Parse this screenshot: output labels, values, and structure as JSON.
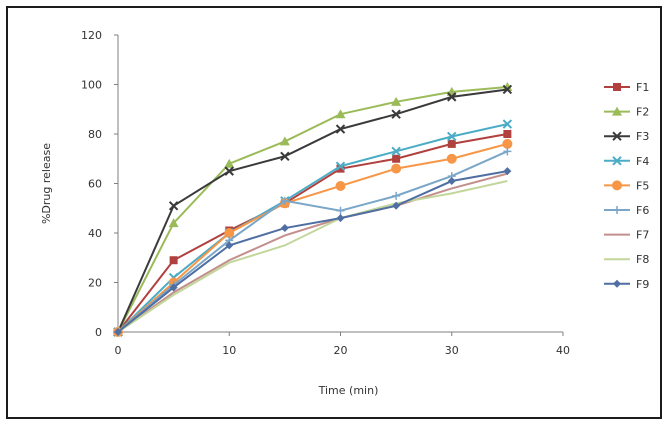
{
  "chart_data": {
    "type": "line",
    "title": "",
    "xlabel": "Time (min)",
    "ylabel": "%Drug release",
    "xlim": [
      0,
      40
    ],
    "ylim": [
      0,
      120
    ],
    "xticks": [
      0,
      10,
      20,
      30,
      40
    ],
    "yticks": [
      0,
      20,
      40,
      60,
      80,
      100,
      120
    ],
    "grid": false,
    "legend_position": "right",
    "x": [
      0,
      5,
      10,
      15,
      20,
      25,
      30,
      35
    ],
    "series": [
      {
        "name": "F1",
        "values": [
          0,
          29,
          41,
          52,
          66,
          70,
          76,
          80
        ],
        "color": "#b0413e",
        "marker": "square"
      },
      {
        "name": "F2",
        "values": [
          0,
          44,
          68,
          77,
          88,
          93,
          97,
          99
        ],
        "color": "#9bbb59",
        "marker": "triangle"
      },
      {
        "name": "F3",
        "values": [
          0,
          51,
          65,
          71,
          82,
          88,
          95,
          98
        ],
        "color": "#3a3a3a",
        "marker": "x"
      },
      {
        "name": "F4",
        "values": [
          0,
          22,
          40,
          53,
          67,
          73,
          79,
          84
        ],
        "color": "#4bacc6",
        "marker": "x"
      },
      {
        "name": "F5",
        "values": [
          0,
          20,
          40,
          52,
          59,
          66,
          70,
          76
        ],
        "color": "#f79646",
        "marker": "circle"
      },
      {
        "name": "F6",
        "values": [
          0,
          19,
          37,
          53,
          49,
          55,
          63,
          73
        ],
        "color": "#7aa6c8",
        "marker": "plus"
      },
      {
        "name": "F7",
        "values": [
          0,
          16,
          29,
          39,
          46,
          51,
          58,
          64
        ],
        "color": "#c28f8c",
        "marker": "none"
      },
      {
        "name": "F8",
        "values": [
          0,
          15,
          28,
          35,
          46,
          52,
          56,
          61
        ],
        "color": "#c3d69b",
        "marker": "none"
      },
      {
        "name": "F9",
        "values": [
          0,
          18,
          35,
          42,
          46,
          51,
          61,
          65
        ],
        "color": "#4f6fa3",
        "marker": "diamond"
      }
    ]
  }
}
